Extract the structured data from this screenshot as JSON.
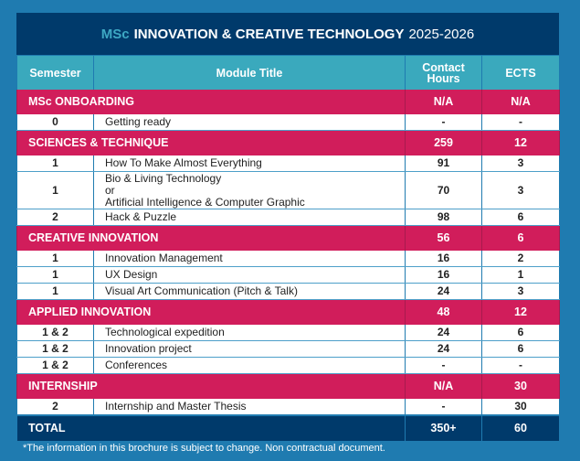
{
  "title": {
    "prefix": "MSc",
    "main": "INNOVATION & CREATIVE TECHNOLOGY",
    "year": "2025-2026"
  },
  "headers": {
    "semester": "Semester",
    "module": "Module Title",
    "hours_line1": "Contact",
    "hours_line2": "Hours",
    "ects": "ECTS"
  },
  "sections": [
    {
      "name": "MSc ONBOARDING",
      "hours": "N/A",
      "ects": "N/A",
      "items": [
        {
          "semester": "0",
          "lines": [
            "Getting ready"
          ],
          "hours": "-",
          "ects": "-"
        }
      ]
    },
    {
      "name": "SCIENCES & TECHNIQUE",
      "hours": "259",
      "ects": "12",
      "items": [
        {
          "semester": "1",
          "lines": [
            "How To Make Almost Everything"
          ],
          "hours": "91",
          "ects": "3"
        },
        {
          "semester": "1",
          "lines": [
            "Bio & Living Technology",
            "or",
            "Artificial Intelligence & Computer Graphic"
          ],
          "hours": "70",
          "ects": "3"
        },
        {
          "semester": "2",
          "lines": [
            "Hack & Puzzle"
          ],
          "hours": "98",
          "ects": "6"
        }
      ]
    },
    {
      "name": "CREATIVE INNOVATION",
      "hours": "56",
      "ects": "6",
      "items": [
        {
          "semester": "1",
          "lines": [
            "Innovation Management"
          ],
          "hours": "16",
          "ects": "2"
        },
        {
          "semester": "1",
          "lines": [
            "UX Design"
          ],
          "hours": "16",
          "ects": "1"
        },
        {
          "semester": "1",
          "lines": [
            "Visual Art Communication (Pitch & Talk)"
          ],
          "hours": "24",
          "ects": "3"
        }
      ]
    },
    {
      "name": "APPLIED INNOVATION",
      "hours": "48",
      "ects": "12",
      "items": [
        {
          "semester": "1 & 2",
          "lines": [
            "Technological expedition"
          ],
          "hours": "24",
          "ects": "6"
        },
        {
          "semester": "1 & 2",
          "lines": [
            "Innovation project"
          ],
          "hours": "24",
          "ects": "6"
        },
        {
          "semester": "1 & 2",
          "lines": [
            "Conferences"
          ],
          "hours": "-",
          "ects": "-"
        }
      ]
    },
    {
      "name": "INTERNSHIP",
      "hours": "N/A",
      "ects": "30",
      "items": [
        {
          "semester": "2",
          "lines": [
            "Internship and Master Thesis"
          ],
          "hours": "-",
          "ects": "30"
        }
      ]
    }
  ],
  "total": {
    "label": "TOTAL",
    "hours": "350+",
    "ects": "60"
  },
  "footnote": "*The information in this brochure is subject to change. Non contractual document.",
  "colors": {
    "background": "#1f7bb0",
    "title_bar": "#003a6b",
    "header": "#3aa9bd",
    "section": "#d11d5b",
    "accent_msc": "#3ea8c4"
  }
}
